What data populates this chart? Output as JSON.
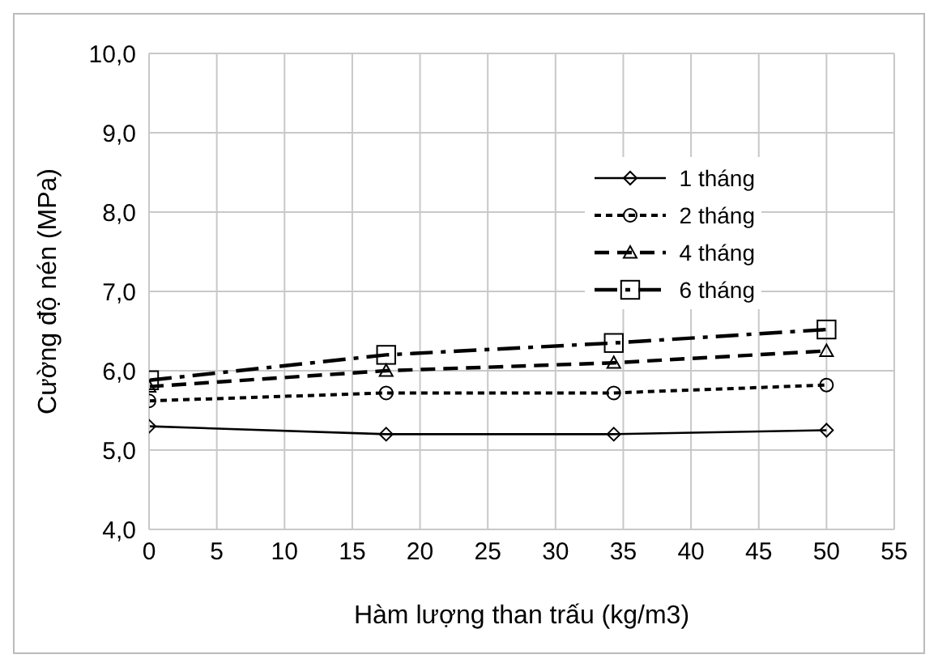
{
  "chart_data": {
    "type": "line",
    "xlabel": "Hàm lượng than trấu (kg/m3)",
    "ylabel": "Cường độ nén (MPa)",
    "xlim": [
      0,
      55
    ],
    "xticks": [
      0,
      5,
      10,
      15,
      20,
      25,
      30,
      35,
      40,
      45,
      50,
      55
    ],
    "ylim": [
      4,
      10
    ],
    "yticks": [
      {
        "value": 4,
        "label": "4,0"
      },
      {
        "value": 5,
        "label": "5,0"
      },
      {
        "value": 6,
        "label": "6,0"
      },
      {
        "value": 7,
        "label": "7,0"
      },
      {
        "value": 8,
        "label": "8,0"
      },
      {
        "value": 9,
        "label": "9,0"
      },
      {
        "value": 10,
        "label": "10,0"
      }
    ],
    "grid": true,
    "legend": "top right",
    "series": [
      {
        "name": "1 tháng",
        "color": "#000000",
        "x": [
          0,
          17.5,
          34.3,
          50
        ],
        "values": [
          5.3,
          5.2,
          5.2,
          5.25
        ],
        "marker": "diamond",
        "line_style": "solid"
      },
      {
        "name": "2 tháng",
        "color": "#000000",
        "x": [
          0,
          17.5,
          34.3,
          50
        ],
        "values": [
          5.62,
          5.72,
          5.72,
          5.82
        ],
        "marker": "circle",
        "line_style": "dotted"
      },
      {
        "name": "4 tháng",
        "color": "#000000",
        "x": [
          0,
          17.5,
          34.3,
          50
        ],
        "values": [
          5.8,
          6.0,
          6.1,
          6.25
        ],
        "marker": "triangle",
        "line_style": "dashed"
      },
      {
        "name": "6 tháng",
        "color": "#000000",
        "x": [
          0,
          17.5,
          34.3,
          50
        ],
        "values": [
          5.88,
          6.2,
          6.35,
          6.52
        ],
        "marker": "square",
        "line_style": "dashdot"
      }
    ]
  }
}
